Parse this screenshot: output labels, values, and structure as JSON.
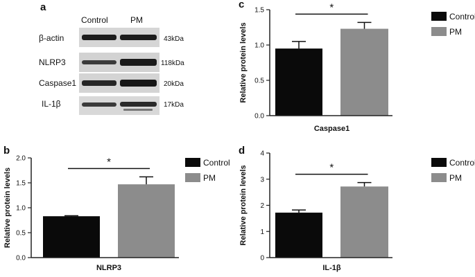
{
  "blot": {
    "letter": "a",
    "columns": [
      "Control",
      "PM"
    ],
    "rows": [
      {
        "protein": "β-actin",
        "mw": "43kDa"
      },
      {
        "protein": "NLRP3",
        "mw": "118kDa"
      },
      {
        "protein": "Caspase1",
        "mw": "20kDa"
      },
      {
        "protein": "IL-1β",
        "mw": "17kDa"
      }
    ]
  },
  "colors": {
    "control": "#0a0a0a",
    "pm": "#8c8c8c",
    "blot_bg": "#d8d8d8",
    "band": "#1a1a1a"
  },
  "chart_data": [
    {
      "letter": "b",
      "type": "bar",
      "categories": [
        "Control",
        "PM"
      ],
      "values": [
        0.83,
        1.47
      ],
      "errors": [
        0.01,
        0.15
      ],
      "xlabel": "NLRP3",
      "ylabel": "Relative protein levels",
      "ylim": [
        0,
        2.0
      ],
      "yticks": [
        "0.0",
        "0.5",
        "1.0",
        "1.5",
        "2.0"
      ],
      "significance": "*",
      "legend": [
        "Control",
        "PM"
      ],
      "legend_position": "top-right",
      "grid": false
    },
    {
      "letter": "c",
      "type": "bar",
      "categories": [
        "Control",
        "PM"
      ],
      "values": [
        0.95,
        1.23
      ],
      "errors": [
        0.1,
        0.09
      ],
      "xlabel": "Caspase1",
      "ylabel": "Relative protein levels",
      "ylim": [
        0,
        1.5
      ],
      "yticks": [
        "0.0",
        "0.5",
        "1.0",
        "1.5"
      ],
      "significance": "*",
      "legend": [
        "Control",
        "PM"
      ],
      "legend_position": "top-right",
      "grid": false
    },
    {
      "letter": "d",
      "type": "bar",
      "categories": [
        "Control",
        "PM"
      ],
      "values": [
        1.72,
        2.72
      ],
      "errors": [
        0.1,
        0.15
      ],
      "xlabel": "IL-1β",
      "ylabel": "Relative protein levels",
      "ylim": [
        0,
        4
      ],
      "yticks": [
        "0",
        "1",
        "2",
        "3",
        "4"
      ],
      "significance": "*",
      "legend": [
        "Control",
        "PM"
      ],
      "legend_position": "top-right",
      "grid": false
    }
  ]
}
